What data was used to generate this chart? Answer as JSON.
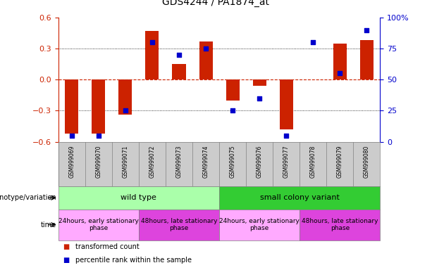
{
  "title": "GDS4244 / PA1874_at",
  "samples": [
    "GSM999069",
    "GSM999070",
    "GSM999071",
    "GSM999072",
    "GSM999073",
    "GSM999074",
    "GSM999075",
    "GSM999076",
    "GSM999077",
    "GSM999078",
    "GSM999079",
    "GSM999080"
  ],
  "bar_values": [
    -0.52,
    -0.52,
    -0.34,
    0.47,
    0.15,
    0.37,
    -0.2,
    -0.06,
    -0.48,
    0.0,
    0.35,
    0.38
  ],
  "percentile_values": [
    5,
    5,
    25,
    80,
    70,
    75,
    25,
    35,
    5,
    80,
    55,
    90
  ],
  "ylim": [
    -0.6,
    0.6
  ],
  "yticks_left": [
    -0.6,
    -0.3,
    0.0,
    0.3,
    0.6
  ],
  "yticks_right": [
    0,
    25,
    50,
    75,
    100
  ],
  "ytick_labels_right": [
    "0",
    "25",
    "50",
    "75",
    "100%"
  ],
  "bar_color": "#cc2200",
  "dot_color": "#0000cc",
  "hline_color": "#cc2200",
  "dotted_color": "#000000",
  "bg_color": "#ffffff",
  "tick_color_left": "#cc2200",
  "tick_color_right": "#0000cc",
  "sample_bg_color": "#cccccc",
  "genotype_row": [
    {
      "label": "wild type",
      "start": 0,
      "end": 6,
      "color": "#aaffaa"
    },
    {
      "label": "small colony variant",
      "start": 6,
      "end": 12,
      "color": "#33cc33"
    }
  ],
  "time_row": [
    {
      "label": "24hours, early stationary\nphase",
      "start": 0,
      "end": 3,
      "color": "#ffaaff"
    },
    {
      "label": "48hours, late stationary\nphase",
      "start": 3,
      "end": 6,
      "color": "#dd44dd"
    },
    {
      "label": "24hours, early stationary\nphase",
      "start": 6,
      "end": 9,
      "color": "#ffaaff"
    },
    {
      "label": "48hours, late stationary\nphase",
      "start": 9,
      "end": 12,
      "color": "#dd44dd"
    }
  ],
  "legend_red": "transformed count",
  "legend_blue": "percentile rank within the sample",
  "genotype_label": "genotype/variation",
  "time_label": "time",
  "bar_width": 0.5
}
